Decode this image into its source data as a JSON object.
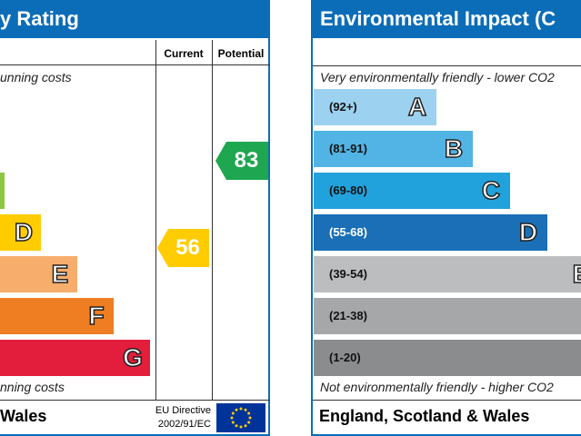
{
  "left_panel": {
    "title": "y Rating",
    "header": {
      "current": "Current",
      "potential": "Potential"
    },
    "top_text": "unning costs",
    "bottom_text": "nning costs",
    "bands": [
      {
        "letter": null,
        "color": "#8dc63f"
      },
      {
        "letter": "D",
        "color": "#ffcc00"
      },
      {
        "letter": "E",
        "color": "#f7ad6b"
      },
      {
        "letter": "F",
        "color": "#ef7d22"
      },
      {
        "letter": "G",
        "color": "#e31d3c"
      }
    ],
    "current": {
      "label": "56",
      "color": "#ffcc00"
    },
    "potential": {
      "label": "83",
      "color": "#1ea650"
    },
    "footer": "Wales",
    "eu_directive": [
      "EU Directive",
      "2002/91/EC"
    ]
  },
  "right_panel": {
    "title": "Environmental Impact (C",
    "top_text": "Very environmentally friendly - lower CO2",
    "bottom_text": "Not environmentally friendly - higher CO2",
    "bands": [
      {
        "range": "(92+)",
        "letter": "A",
        "color": "#9dd1f0"
      },
      {
        "range": "(81-91)",
        "letter": "B",
        "color": "#52b4e4"
      },
      {
        "range": "(69-80)",
        "letter": "C",
        "color": "#22a2dc"
      },
      {
        "range": "(55-68)",
        "letter": "D",
        "color": "#1a6fb7"
      },
      {
        "range": "(39-54)",
        "letter": "E",
        "color": "#bbbdbf"
      },
      {
        "range": "(21-38)",
        "letter": null,
        "color": "#a5a7a9"
      },
      {
        "range": "(1-20)",
        "letter": null,
        "color": "#8a8c8e"
      }
    ],
    "footer": "England, Scotland & Wales"
  }
}
